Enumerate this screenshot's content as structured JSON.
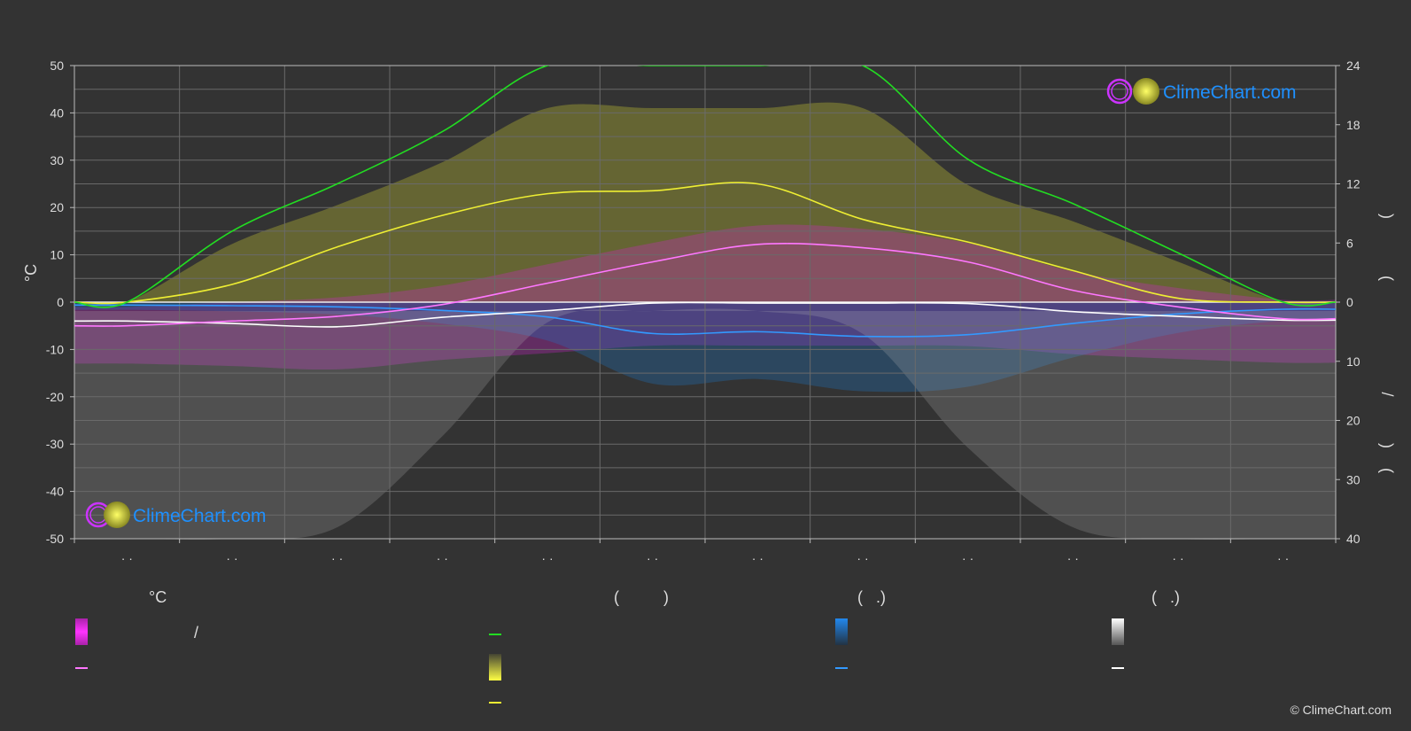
{
  "chart_data": {
    "type": "line",
    "ylabel_left": "°C",
    "ylim_left": [
      -50,
      50
    ],
    "yticks_left": [
      "50",
      "40",
      "30",
      "20",
      "10",
      "0",
      "-10",
      "-20",
      "-30",
      "-40",
      "-50"
    ],
    "ylim_right_top": [
      0,
      24
    ],
    "yticks_right_top": [
      "24",
      "18",
      "12",
      "6",
      "0"
    ],
    "ylim_right_bottom": [
      0,
      40
    ],
    "yticks_right_bottom": [
      "10",
      "20",
      "30",
      "40"
    ],
    "right_axis_glyphs": [
      ")",
      ")",
      "/",
      ")",
      "(",
      "·",
      "("
    ],
    "x_tick_labels": [
      "· ·",
      "· ·",
      "· ·",
      "· ·",
      "· ·",
      "· ·",
      "· ·",
      "· ·",
      "· ·",
      "· ·",
      "· ·",
      "· ·"
    ],
    "series": [
      {
        "key": "daylight",
        "color": "#22dd22",
        "values": [
          0.0,
          7.2,
          12.0,
          17.3,
          24,
          24,
          24,
          24,
          14.5,
          10.0,
          5.0,
          0.0
        ]
      },
      {
        "key": "sunshine",
        "color": "#eeee33",
        "values": [
          0.0,
          1.8,
          5.6,
          8.8,
          11.0,
          11.3,
          12.0,
          8.4,
          6.1,
          3.2,
          0.4,
          0.0
        ]
      },
      {
        "key": "temp_max",
        "color": "#ff77ff",
        "values": [
          -5.0,
          -4.0,
          -3.0,
          -0.5,
          4.0,
          8.5,
          12.2,
          11.5,
          8.5,
          2.5,
          -1.0,
          -3.5
        ]
      },
      {
        "key": "temp_min",
        "color": "#ffffff",
        "values": [
          -4.0,
          -4.5,
          -5.2,
          -3.2,
          -1.8,
          -0.2,
          -0.2,
          -0.2,
          -0.3,
          -2.0,
          -3.0,
          -3.8
        ]
      },
      {
        "key": "precipitation",
        "color": "#3399ff",
        "values": [
          0.5,
          0.6,
          0.8,
          1.4,
          2.5,
          5.3,
          5.0,
          5.8,
          5.5,
          3.6,
          2.0,
          1.2
        ]
      }
    ],
    "legend": {
      "temperature_header": "°C",
      "sun_header": "(          )",
      "rain_header": "(   .)",
      "snow_header": "(   .)",
      "range_text": "/"
    },
    "colors": {
      "background": "#333333",
      "grid": "#6a6a6a",
      "temp_band": "#dd22dd",
      "sun_band": "#cccc33",
      "rain_band": "#1e78c8",
      "snow_band": "#bbbbbb"
    }
  },
  "logo_text": "ClimeChart.com",
  "copyright": "© ClimeChart.com"
}
